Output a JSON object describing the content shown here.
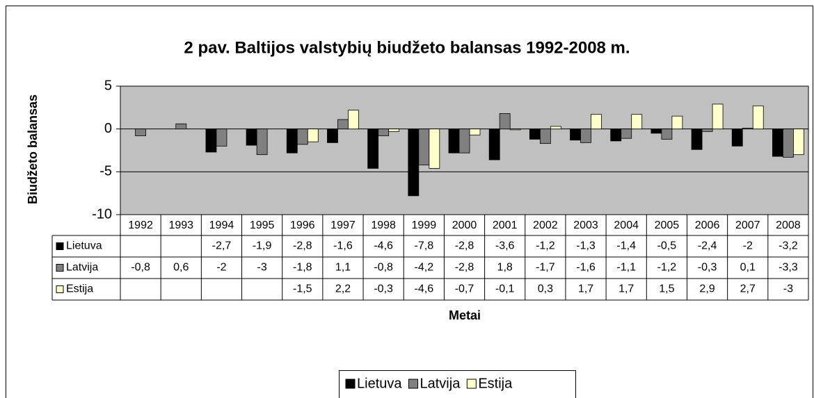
{
  "chart_data": {
    "type": "bar",
    "title": "2 pav. Baltijos valstybių biudžeto balansas 1992-2008 m.",
    "x_label": "Metai",
    "y_label": "Biudžeto balansas",
    "categories": [
      "1992",
      "1993",
      "1994",
      "1995",
      "1996",
      "1997",
      "1998",
      "1999",
      "2000",
      "2001",
      "2002",
      "2003",
      "2004",
      "2005",
      "2006",
      "2007",
      "2008"
    ],
    "series": [
      {
        "name": "Lietuva",
        "color": "#000000",
        "values": [
          null,
          null,
          -2.7,
          -1.9,
          -2.8,
          -1.6,
          -4.6,
          -7.8,
          -2.8,
          -3.6,
          -1.2,
          -1.3,
          -1.4,
          -0.5,
          -2.4,
          -2,
          -3.2
        ],
        "value_labels": [
          null,
          null,
          "-2,7",
          "-1,9",
          "-2,8",
          "-1,6",
          "-4,6",
          "-7,8",
          "-2,8",
          "-3,6",
          "-1,2",
          "-1,3",
          "-1,4",
          "-0,5",
          "-2,4",
          "-2",
          "-3,2"
        ]
      },
      {
        "name": "Latvija",
        "color": "#808080",
        "values": [
          -0.8,
          0.6,
          -2,
          -3,
          -1.8,
          1.1,
          -0.8,
          -4.2,
          -2.8,
          1.8,
          -1.7,
          -1.6,
          -1.1,
          -1.2,
          -0.3,
          0.1,
          -3.3
        ],
        "value_labels": [
          "-0,8",
          "0,6",
          "-2",
          "-3",
          "-1,8",
          "1,1",
          "-0,8",
          "-4,2",
          "-2,8",
          "1,8",
          "-1,7",
          "-1,6",
          "-1,1",
          "-1,2",
          "-0,3",
          "0,1",
          "-3,3"
        ]
      },
      {
        "name": "Estija",
        "color": "#ffffcc",
        "values": [
          null,
          null,
          null,
          null,
          -1.5,
          2.2,
          -0.3,
          -4.6,
          -0.7,
          -0.1,
          0.3,
          1.7,
          1.7,
          1.5,
          2.9,
          2.7,
          -3
        ],
        "value_labels": [
          null,
          null,
          null,
          null,
          "-1,5",
          "2,2",
          "-0,3",
          "-4,6",
          "-0,7",
          "-0,1",
          "0,3",
          "1,7",
          "1,7",
          "1,5",
          "2,9",
          "2,7",
          "-3"
        ]
      }
    ],
    "ylim": [
      -10,
      5
    ],
    "yticks": [
      5,
      0,
      -5,
      -10
    ],
    "grid": true,
    "plot_background": "#c0c0c0",
    "legend": "bottom"
  }
}
